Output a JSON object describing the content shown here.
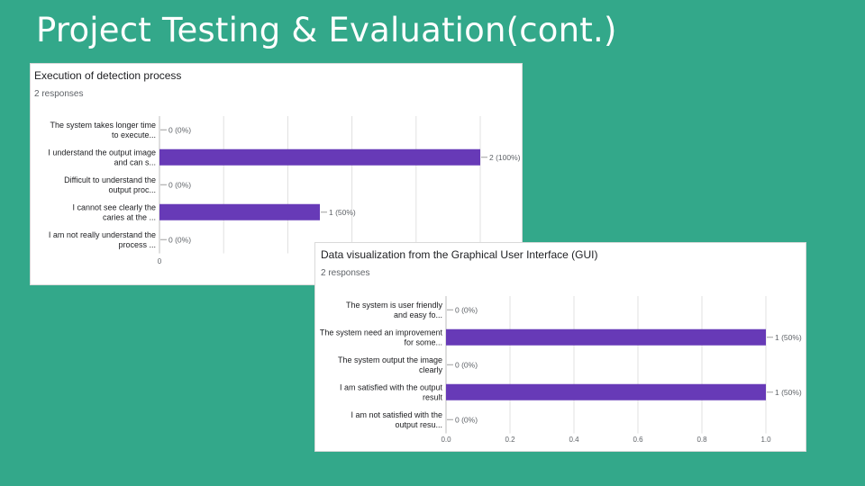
{
  "slide": {
    "title": "Project Testing & Evaluation(cont.)"
  },
  "chart_data": [
    {
      "type": "bar",
      "orientation": "horizontal",
      "title": "Execution of detection process",
      "subtitle": "2 responses",
      "categories": [
        "The system takes longer time to execute...",
        "I understand the output image and can s...",
        "Difficult to understand the output proc...",
        "I cannot see clearly the caries at the ...",
        "I am not really understand the process ..."
      ],
      "values": [
        0,
        2,
        0,
        1,
        0
      ],
      "value_labels": [
        "0 (0%)",
        "2 (100%)",
        "0 (0%)",
        "1 (50%)",
        "0 (0%)"
      ],
      "xlim": [
        0,
        2
      ],
      "x_ticks": [
        "0"
      ],
      "grid": true,
      "bar_color": "#673ab7"
    },
    {
      "type": "bar",
      "orientation": "horizontal",
      "title": "Data visualization from the Graphical User Interface (GUI)",
      "subtitle": "2 responses",
      "categories": [
        "The system is user friendly and easy fo...",
        "The system need an improvement for some...",
        "The system output the image clearly",
        "I am satisfied with the output result",
        "I am not satisfied with the output resu..."
      ],
      "values": [
        0,
        1,
        0,
        1,
        0
      ],
      "value_labels": [
        "0 (0%)",
        "1 (50%)",
        "0 (0%)",
        "1 (50%)",
        "0 (0%)"
      ],
      "xlim": [
        0,
        1
      ],
      "x_ticks": [
        "0.0",
        "0.2",
        "0.4",
        "0.6",
        "0.8",
        "1.0"
      ],
      "grid": true,
      "bar_color": "#673ab7"
    }
  ]
}
